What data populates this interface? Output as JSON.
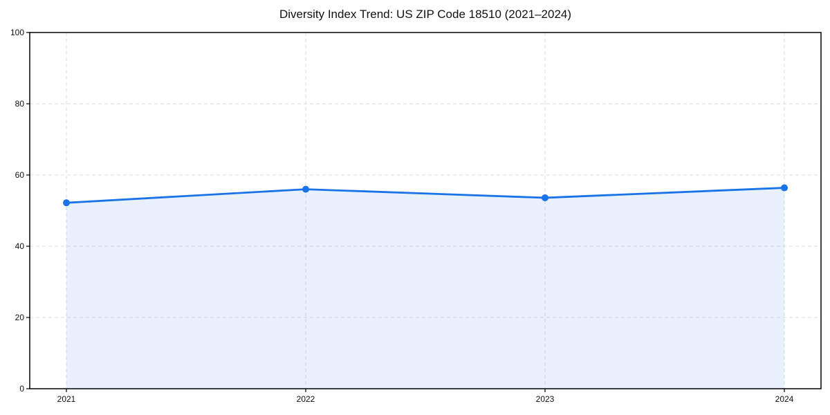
{
  "chart_data": {
    "type": "line",
    "title": "Diversity Index Trend: US ZIP Code 18510 (2021–2024)",
    "categories": [
      "2021",
      "2022",
      "2023",
      "2024"
    ],
    "values": [
      52.2,
      56.0,
      53.6,
      56.4
    ],
    "series_name": "Diversity Index",
    "xlabel": "",
    "ylabel": "",
    "ylim": [
      0,
      100
    ],
    "yticks": [
      0,
      20,
      40,
      60,
      80,
      100
    ],
    "grid": true,
    "grid_style": "dashed",
    "legend": false,
    "area_fill": true,
    "line_color": "#1a73e8",
    "fill_color": "rgba(26,115,232,0.10)",
    "marker": "circle",
    "background_color": "#ffffff"
  }
}
